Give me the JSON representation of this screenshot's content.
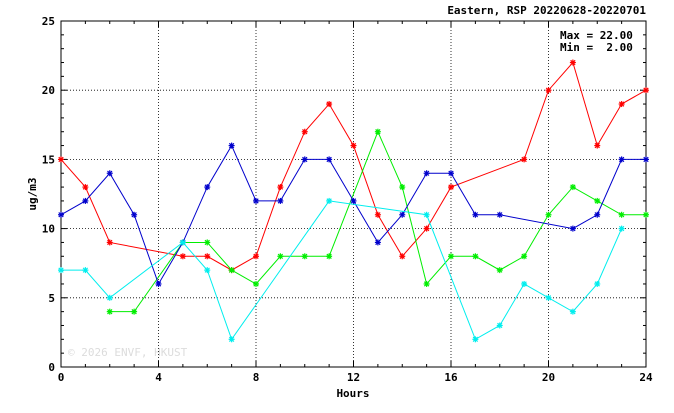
{
  "chart_data": {
    "type": "line",
    "title": "Eastern, RSP 20220628-20220701",
    "xlabel": "Hours",
    "ylabel": "ug/m3",
    "xlim": [
      0,
      24
    ],
    "ylim": [
      0,
      25
    ],
    "x_ticks": [
      0,
      4,
      8,
      12,
      16,
      20,
      24
    ],
    "y_ticks": [
      0,
      5,
      10,
      15,
      20,
      25
    ],
    "grid": true,
    "stats": {
      "max_label": "Max = 22.00",
      "min_label": "Min =  2.00"
    },
    "watermark": "© 2026  ENVF, HKUST",
    "series": [
      {
        "color": "#ff0000",
        "points": [
          [
            0,
            15
          ],
          [
            1,
            13
          ],
          [
            2,
            9
          ],
          [
            5,
            8
          ],
          [
            6,
            8
          ],
          [
            7,
            7
          ],
          [
            8,
            8
          ],
          [
            9,
            13
          ],
          [
            10,
            17
          ],
          [
            11,
            19
          ],
          [
            12,
            16
          ],
          [
            13,
            11
          ],
          [
            14,
            8
          ],
          [
            15,
            10
          ],
          [
            16,
            13
          ],
          [
            19,
            15
          ],
          [
            20,
            20
          ],
          [
            21,
            22
          ],
          [
            22,
            16
          ],
          [
            23,
            19
          ],
          [
            24,
            20
          ]
        ]
      },
      {
        "color": "#00ee00",
        "points": [
          [
            2,
            4
          ],
          [
            3,
            4
          ],
          [
            5,
            9
          ],
          [
            6,
            9
          ],
          [
            7,
            7
          ],
          [
            8,
            6
          ],
          [
            9,
            8
          ],
          [
            10,
            8
          ],
          [
            11,
            8
          ],
          [
            13,
            17
          ],
          [
            14,
            13
          ],
          [
            15,
            6
          ],
          [
            16,
            8
          ],
          [
            17,
            8
          ],
          [
            18,
            7
          ],
          [
            19,
            8
          ],
          [
            20,
            11
          ],
          [
            21,
            13
          ],
          [
            22,
            12
          ],
          [
            23,
            11
          ],
          [
            24,
            11
          ]
        ]
      },
      {
        "color": "#0000cc",
        "points": [
          [
            0,
            11
          ],
          [
            1,
            12
          ],
          [
            2,
            14
          ],
          [
            3,
            11
          ],
          [
            4,
            6
          ],
          [
            5,
            9
          ],
          [
            6,
            13
          ],
          [
            7,
            16
          ],
          [
            8,
            12
          ],
          [
            9,
            12
          ],
          [
            10,
            15
          ],
          [
            11,
            15
          ],
          [
            12,
            12
          ],
          [
            13,
            9
          ],
          [
            14,
            11
          ],
          [
            15,
            14
          ],
          [
            16,
            14
          ],
          [
            17,
            11
          ],
          [
            18,
            11
          ],
          [
            21,
            10
          ],
          [
            22,
            11
          ],
          [
            23,
            15
          ],
          [
            24,
            15
          ]
        ]
      },
      {
        "color": "#00eeee",
        "points": [
          [
            0,
            7
          ],
          [
            1,
            7
          ],
          [
            2,
            5
          ],
          [
            5,
            9
          ],
          [
            6,
            7
          ],
          [
            7,
            2
          ],
          [
            11,
            12
          ],
          [
            15,
            11
          ],
          [
            17,
            2
          ],
          [
            18,
            3
          ],
          [
            19,
            6
          ],
          [
            20,
            5
          ],
          [
            21,
            4
          ],
          [
            22,
            6
          ],
          [
            23,
            10
          ]
        ]
      }
    ]
  }
}
